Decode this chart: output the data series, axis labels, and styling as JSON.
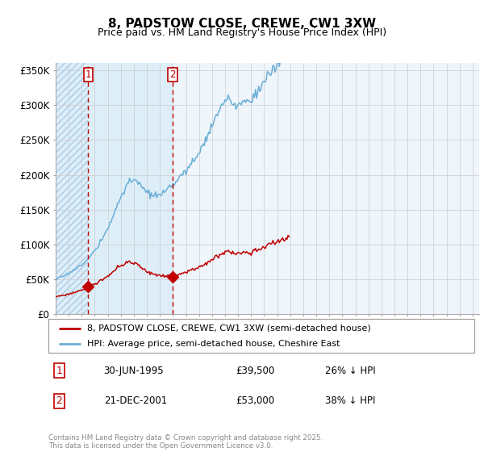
{
  "title": "8, PADSTOW CLOSE, CREWE, CW1 3XW",
  "subtitle": "Price paid vs. HM Land Registry's House Price Index (HPI)",
  "legend_entry1": "8, PADSTOW CLOSE, CREWE, CW1 3XW (semi-detached house)",
  "legend_entry2": "HPI: Average price, semi-detached house, Cheshire East",
  "transaction1_date": "30-JUN-1995",
  "transaction1_price": 39500,
  "transaction1_label": "26% ↓ HPI",
  "transaction2_date": "21-DEC-2001",
  "transaction2_price": 53000,
  "transaction2_label": "38% ↓ HPI",
  "hpi_color": "#6aaed6",
  "price_color": "#c00000",
  "copyright": "Contains HM Land Registry data © Crown copyright and database right 2025.\nThis data is licensed under the Open Government Licence v3.0.",
  "ylim": [
    0,
    360000
  ],
  "yticks": [
    0,
    50000,
    100000,
    150000,
    200000,
    250000,
    300000,
    350000
  ],
  "ytick_labels": [
    "£0",
    "£50K",
    "£100K",
    "£150K",
    "£200K",
    "£250K",
    "£300K",
    "£350K"
  ],
  "xmin": 1993.0,
  "xmax": 2025.5,
  "tx1_x": 1995.5,
  "tx1_y": 39500,
  "tx2_x": 2001.958,
  "tx2_y": 53000,
  "hpi_base": [
    50500,
    51000,
    51500,
    52000,
    52500,
    53000,
    53800,
    54500,
    55200,
    56000,
    57000,
    58000,
    58500,
    59500,
    60500,
    61500,
    62500,
    63500,
    64500,
    65800,
    67000,
    68000,
    69000,
    70000,
    71000,
    72000,
    73500,
    75000,
    76500,
    78000,
    79500,
    81000,
    83000,
    85000,
    87000,
    89000,
    91000,
    93000,
    95500,
    98000,
    100500,
    103000,
    105500,
    108000,
    111000,
    114000,
    117000,
    120000,
    123000,
    126500,
    130000,
    133500,
    137000,
    141000,
    145000,
    149000,
    153000,
    157000,
    161000,
    165000,
    168500,
    172000,
    175500,
    178500,
    181500,
    184500,
    186500,
    188000,
    189000,
    190000,
    191000,
    191500,
    192000,
    191500,
    190500,
    189000,
    187500,
    186000,
    184500,
    183000,
    181500,
    180000,
    178500,
    177000,
    175500,
    174500,
    173500,
    172500,
    171500,
    171000,
    170500,
    170000,
    169500,
    169500,
    169500,
    170000,
    170500,
    171500,
    172500,
    173500,
    174500,
    175500,
    177000,
    178500,
    180000,
    181500,
    183000,
    185000,
    186500,
    188000,
    190000,
    192000,
    193500,
    195000,
    196500,
    198000,
    199500,
    201000,
    202500,
    204000,
    205500,
    207000,
    209000,
    211000,
    213000,
    215000,
    217000,
    219500,
    222000,
    224500,
    227000,
    230000,
    232500,
    235000,
    238000,
    241000,
    244000,
    247000,
    250500,
    254000,
    257500,
    261000,
    264500,
    268000,
    271000,
    274000,
    277500,
    281000,
    284500,
    287500,
    290000,
    292500,
    295000,
    297500,
    300000,
    302000,
    304000,
    306000,
    308000,
    310000,
    308000,
    306000,
    304000,
    302000,
    300500,
    299500,
    299000,
    299000,
    299500,
    300500,
    301500,
    302500,
    303500,
    304500,
    305500,
    306500,
    307000,
    307500,
    308000,
    308500,
    309000,
    310000,
    311500,
    313000,
    315000,
    317000,
    319500,
    322000,
    324500,
    327000,
    329500,
    332000,
    334000,
    336000,
    338000,
    340000,
    342000,
    344000,
    346000,
    348000,
    350000,
    352000,
    354000,
    356000,
    358000,
    360000,
    362000,
    364000,
    366000,
    368000,
    370000,
    372000,
    374000,
    376000,
    378000,
    380000
  ],
  "hpi_noise_scale": 0.012,
  "price_noise_scale": 0.015,
  "hpi_seed": 17,
  "price_seed": 99
}
